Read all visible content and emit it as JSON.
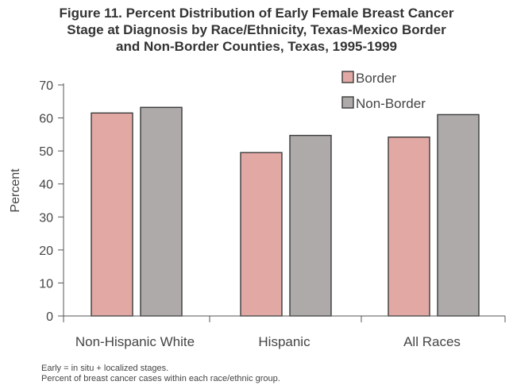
{
  "chart_data": {
    "type": "bar",
    "title_lines": [
      "Figure 11. Percent Distribution of Early Female Breast Cancer",
      "Stage at Diagnosis by Race/Ethnicity, Texas-Mexico Border",
      "and Non-Border Counties, Texas, 1995-1999"
    ],
    "xlabel": "",
    "ylabel": "Percent",
    "ylim": [
      0,
      70
    ],
    "yticks": [
      0,
      10,
      20,
      30,
      40,
      50,
      60,
      70
    ],
    "categories": [
      "Non-Hispanic White",
      "Hispanic",
      "All Races"
    ],
    "series": [
      {
        "name": "Border",
        "values": [
          61.5,
          49.5,
          54.2
        ]
      },
      {
        "name": "Non-Border",
        "values": [
          63.2,
          54.7,
          61.0
        ]
      }
    ],
    "grid": false,
    "legend_position": "top-right"
  },
  "colors": {
    "border": "#e2a9a4",
    "non_border": "#aeaaaa",
    "outline": "#3a3a3a",
    "axis": "#555555"
  },
  "notes": [
    "Early = in situ + localized stages.",
    "Percent of breast cancer cases within each race/ethnic group."
  ]
}
